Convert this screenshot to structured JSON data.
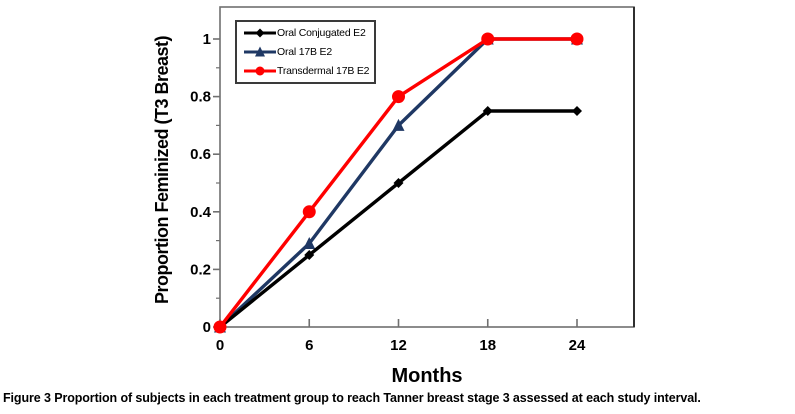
{
  "caption": {
    "figure_label": "Figure 3",
    "text": " Proportion of subjects in each treatment group to reach Tanner breast stage 3 assessed at each study interval."
  },
  "colors": {
    "axis_line": "#707070",
    "frame_right": "#2f2f2f",
    "legend_border": "#3a3a3a",
    "background": "#ffffff",
    "text": "#000000"
  },
  "chart_data": {
    "type": "line",
    "title": "",
    "xlabel": "Months",
    "ylabel": "Proportion Feminized (T3 Breast)",
    "x": [
      0,
      6,
      12,
      18,
      24
    ],
    "xtick_labels": [
      "0",
      "6",
      "12",
      "18",
      "24"
    ],
    "ytick_values": [
      0,
      0.2,
      0.4,
      0.6,
      0.8,
      1
    ],
    "ytick_labels": [
      "0",
      "0.2",
      "0.4",
      "0.6",
      "0.8",
      "1"
    ],
    "y_minor_tick_step": 0.1,
    "xlim": [
      0,
      27.8
    ],
    "ylim": [
      0,
      1.11
    ],
    "grid": false,
    "legend_position": "top-left-inside",
    "series": [
      {
        "name": "Oral Conjugated E2",
        "color": "#000000",
        "marker": "diamond",
        "values": [
          0,
          0.25,
          0.5,
          0.75,
          0.75
        ]
      },
      {
        "name": "Oral 17B E2",
        "color": "#1F3864",
        "marker": "triangle",
        "values": [
          0,
          0.29,
          0.7,
          1,
          1
        ]
      },
      {
        "name": "Transdermal 17B E2",
        "color": "#FF0000",
        "marker": "circle",
        "values": [
          0,
          0.4,
          0.8,
          1,
          1
        ]
      }
    ]
  }
}
